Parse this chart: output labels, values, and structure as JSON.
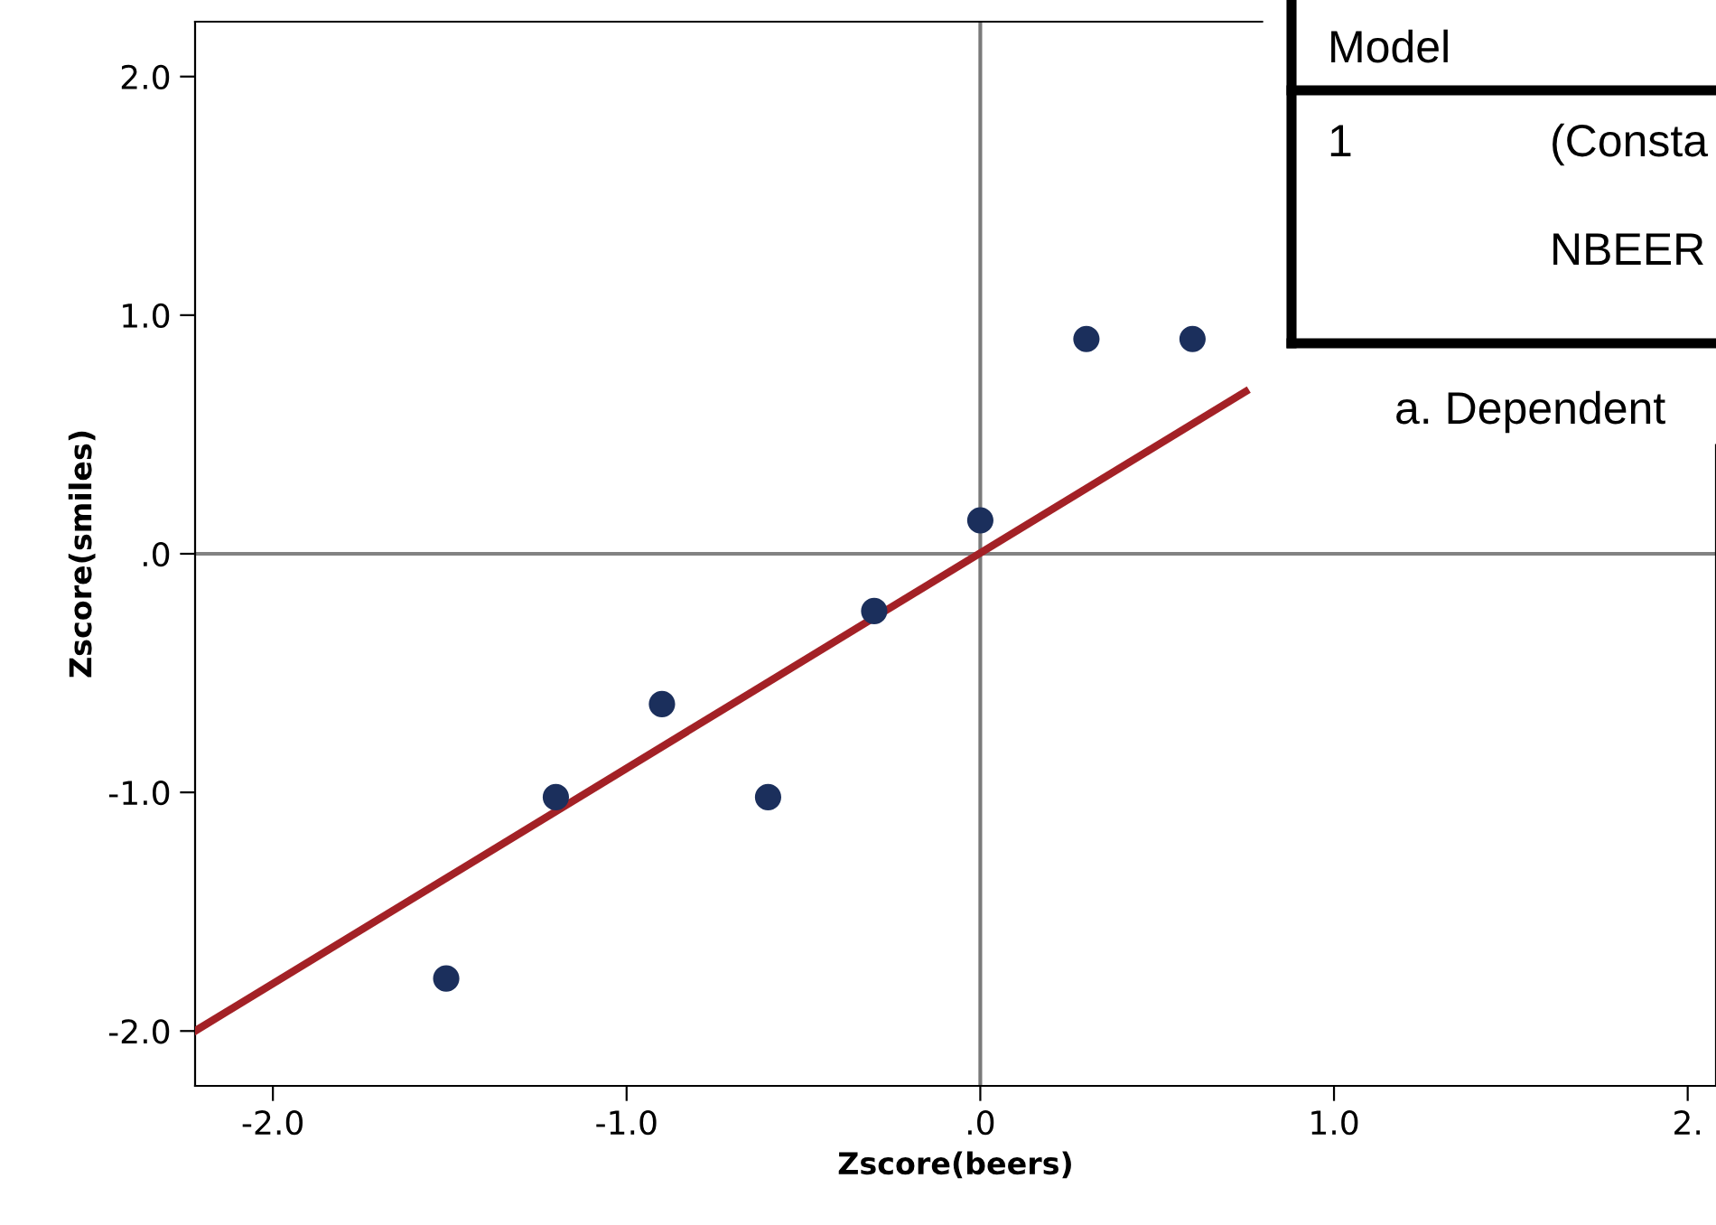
{
  "chart_data": {
    "type": "scatter",
    "xlabel": "Zscore(beers)",
    "ylabel": "Zscore(smiles)",
    "x": [
      -1.51,
      -1.2,
      -0.9,
      -0.6,
      -0.3,
      0.0,
      0.3,
      0.6
    ],
    "series": [
      {
        "color": "#1b2f5c",
        "values": [
          -1.78,
          -1.02,
          -0.63,
          -1.02,
          -0.24,
          0.14,
          0.9,
          0.9
        ]
      },
      {
        "type": "line",
        "marker": "none",
        "color": "#a32126",
        "x": [
          -2.22,
          0.75
        ],
        "values": [
          -2.0,
          0.68
        ]
      }
    ],
    "xlim": [
      -2.22,
      2.08
    ],
    "ylim": [
      -2.23,
      2.23
    ],
    "xticks": [
      {
        "value": -2,
        "label": "-2.0"
      },
      {
        "value": -1,
        "label": "-1.0"
      },
      {
        "value": 0,
        "label": ".0"
      },
      {
        "value": 1,
        "label": "1.0"
      },
      {
        "value": 2,
        "label": "2."
      }
    ],
    "yticks": [
      {
        "value": -2,
        "label": "-2.0"
      },
      {
        "value": -1,
        "label": "-1.0"
      },
      {
        "value": 0,
        "label": ".0"
      },
      {
        "value": 1,
        "label": "1.0"
      },
      {
        "value": 2,
        "label": "2.0"
      }
    ],
    "ref_lines": [
      {
        "axis": "x",
        "value": 0,
        "color": "#7a7a7a"
      },
      {
        "axis": "y",
        "value": 0,
        "color": "#828282"
      }
    ],
    "annotations": [
      "Model",
      "1",
      "(Consta",
      "NBEER",
      "a. Dependent"
    ],
    "marker": "circle",
    "grid": false
  }
}
